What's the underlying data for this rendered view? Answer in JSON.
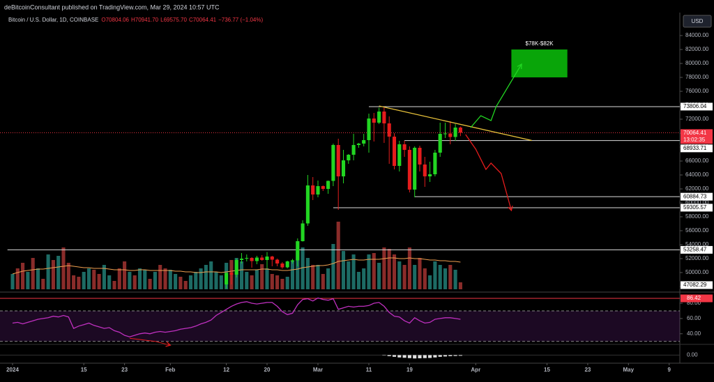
{
  "header": "deBitcoinConsultant published on TradingView.com, Mar 29, 2024 10:57 UTC",
  "chart_data": {
    "type": "candlestick",
    "title": "Bitcoin / U.S. Dollar, 1D, COINBASE",
    "ohlc_labels": [
      "O70804.06",
      "H70941.70",
      "L69575.70",
      "C70064.41"
    ],
    "change_label": "−736.77 (−1.04%)",
    "currency": "USD",
    "x": [
      "2024-02-12",
      "2024-02-13",
      "2024-02-14",
      "2024-02-15",
      "2024-02-16",
      "2024-02-17",
      "2024-02-18",
      "2024-02-19",
      "2024-02-20",
      "2024-02-21",
      "2024-02-22",
      "2024-02-23",
      "2024-02-24",
      "2024-02-25",
      "2024-02-26",
      "2024-02-27",
      "2024-02-28",
      "2024-02-29",
      "2024-03-01",
      "2024-03-02",
      "2024-03-03",
      "2024-03-04",
      "2024-03-05",
      "2024-03-06",
      "2024-03-07",
      "2024-03-08",
      "2024-03-09",
      "2024-03-10",
      "2024-03-11",
      "2024-03-12",
      "2024-03-13",
      "2024-03-14",
      "2024-03-15",
      "2024-03-16",
      "2024-03-17",
      "2024-03-18",
      "2024-03-19",
      "2024-03-20",
      "2024-03-21",
      "2024-03-22",
      "2024-03-23",
      "2024-03-24",
      "2024-03-25",
      "2024-03-26",
      "2024-03-27",
      "2024-03-28",
      "2024-03-29"
    ],
    "open": [
      48300,
      49950,
      49700,
      51800,
      52000,
      52100,
      51650,
      52150,
      51800,
      52300,
      51850,
      51300,
      50750,
      51600,
      51750,
      54500,
      57050,
      62500,
      61200,
      62400,
      62000,
      63150,
      68300,
      63800,
      66100,
      66900,
      68300,
      68500,
      69000,
      72100,
      71500,
      73100,
      71400,
      69500,
      65300,
      68400,
      67600,
      61900,
      67900,
      65500,
      63800,
      64100,
      67200,
      69900,
      69950,
      69450,
      70804.06
    ],
    "high": [
      50000,
      50350,
      52000,
      52800,
      52600,
      52200,
      52400,
      52500,
      52950,
      52400,
      52000,
      51500,
      51700,
      51950,
      54900,
      57500,
      64000,
      63700,
      63200,
      62500,
      63200,
      68500,
      69200,
      67600,
      67000,
      69900,
      68600,
      69900,
      72800,
      72900,
      73650,
      73800,
      72400,
      70000,
      68900,
      68900,
      68100,
      68100,
      68200,
      66600,
      65900,
      67600,
      71500,
      71500,
      71700,
      71300,
      70941.7
    ],
    "low": [
      47700,
      48300,
      49300,
      51300,
      51600,
      50700,
      51200,
      51700,
      50600,
      50900,
      50900,
      50550,
      50600,
      51300,
      50900,
      54450,
      56700,
      60400,
      60800,
      61700,
      61300,
      62400,
      59000,
      62800,
      65600,
      66100,
      67900,
      68100,
      67200,
      68800,
      71300,
      68600,
      65600,
      64800,
      64500,
      66600,
      61500,
      60800,
      64500,
      62300,
      63000,
      63800,
      66600,
      69300,
      68400,
      68900,
      69575.7
    ],
    "close": [
      49950,
      49700,
      51800,
      52000,
      52100,
      51650,
      52150,
      51800,
      52300,
      51850,
      51300,
      50750,
      51600,
      51750,
      54500,
      57050,
      62500,
      61200,
      62400,
      62000,
      63150,
      68300,
      63800,
      66100,
      66900,
      68300,
      68500,
      69000,
      72100,
      71500,
      73100,
      71400,
      69500,
      65300,
      68400,
      67600,
      61900,
      67900,
      65500,
      63800,
      64100,
      67200,
      69900,
      69950,
      69450,
      70800,
      70064.41
    ],
    "up_color": "#22d622",
    "down_color": "#e51c1c",
    "xlim": [
      "2023-12-31",
      "2024-05-11"
    ],
    "xticks": [
      {
        "value": "2024-01-01",
        "label": "2024"
      },
      {
        "value": "2024-01-15",
        "label": "15"
      },
      {
        "value": "2024-01-23",
        "label": "23"
      },
      {
        "value": "2024-02-01",
        "label": "Feb"
      },
      {
        "value": "2024-02-12",
        "label": "12"
      },
      {
        "value": "2024-02-20",
        "label": "20"
      },
      {
        "value": "2024-03-01",
        "label": "Mar"
      },
      {
        "value": "2024-03-11",
        "label": "11"
      },
      {
        "value": "2024-03-19",
        "label": "19"
      },
      {
        "value": "2024-04-01",
        "label": "Apr"
      },
      {
        "value": "2024-04-15",
        "label": "15"
      },
      {
        "value": "2024-04-23",
        "label": "23"
      },
      {
        "value": "2024-05-01",
        "label": "May"
      },
      {
        "value": "2024-05-09",
        "label": "9"
      }
    ],
    "ylim": [
      47600,
      86900
    ],
    "yticks": [
      {
        "value": 48000,
        "label": "48000.00"
      },
      {
        "value": 50000,
        "label": "50000.00"
      },
      {
        "value": 52000,
        "label": "52000.00"
      },
      {
        "value": 54000,
        "label": "54000.00"
      },
      {
        "value": 56000,
        "label": "56000.00"
      },
      {
        "value": 58000,
        "label": "58000.00"
      },
      {
        "value": 60000,
        "label": "60000.00"
      },
      {
        "value": 62000,
        "label": "62000.00"
      },
      {
        "value": 64000,
        "label": "64000.00"
      },
      {
        "value": 66000,
        "label": "66000.00"
      },
      {
        "value": 68000,
        "label": "68000.00"
      },
      {
        "value": 70000,
        "label": "70000.00"
      },
      {
        "value": 72000,
        "label": "72000.00"
      },
      {
        "value": 74000,
        "label": "74000.00"
      },
      {
        "value": 76000,
        "label": "76000.00"
      },
      {
        "value": 78000,
        "label": "78000.00"
      },
      {
        "value": 80000,
        "label": "80000.00"
      },
      {
        "value": 82000,
        "label": "82000.00"
      },
      {
        "value": 84000,
        "label": "84000.00"
      }
    ],
    "last_price": {
      "value": 70064.41,
      "countdown": "13:02:35",
      "color": "#f23645"
    },
    "levels": [
      {
        "value": 73806.04,
        "start": "2024-03-11"
      },
      {
        "value": 68933.71,
        "start": "2024-03-18"
      },
      {
        "value": 60884.73,
        "start": "2024-03-20"
      },
      {
        "value": 59305.57,
        "start": "2024-03-04"
      },
      {
        "value": 53258.47,
        "start": "2023-12-31"
      },
      {
        "value": 47082.29,
        "start": "2023-12-31"
      }
    ],
    "trendline": {
      "color": "#e8c23a",
      "points": [
        {
          "x": "2024-03-13",
          "y": 73900
        },
        {
          "x": "2024-04-12",
          "y": 68950
        }
      ]
    },
    "arrows": [
      {
        "color": "#22d622",
        "points": [
          {
            "x": "2024-03-31",
            "y": 70800
          },
          {
            "x": "2024-04-02",
            "y": 72500
          },
          {
            "x": "2024-04-04",
            "y": 71800
          },
          {
            "x": "2024-04-05",
            "y": 73800
          },
          {
            "x": "2024-04-10",
            "y": 79900
          }
        ]
      },
      {
        "color": "#e51c1c",
        "points": [
          {
            "x": "2024-03-30",
            "y": 69800
          },
          {
            "x": "2024-04-01",
            "y": 67700
          },
          {
            "x": "2024-04-03",
            "y": 64800
          },
          {
            "x": "2024-04-04",
            "y": 65700
          },
          {
            "x": "2024-04-06",
            "y": 64200
          },
          {
            "x": "2024-04-08",
            "y": 58900
          }
        ]
      }
    ],
    "target_zone": {
      "label": "$78K-$82K",
      "color": "#09a509",
      "x": [
        "2024-04-08",
        "2024-04-19"
      ],
      "y": [
        78000,
        82000
      ]
    },
    "volume": {
      "x": [
        "2024-01-01",
        "2024-01-02",
        "2024-01-03",
        "2024-01-04",
        "2024-01-05",
        "2024-01-06",
        "2024-01-07",
        "2024-01-08",
        "2024-01-09",
        "2024-01-10",
        "2024-01-11",
        "2024-01-12",
        "2024-01-13",
        "2024-01-14",
        "2024-01-15",
        "2024-01-16",
        "2024-01-17",
        "2024-01-18",
        "2024-01-19",
        "2024-01-20",
        "2024-01-21",
        "2024-01-22",
        "2024-01-23",
        "2024-01-24",
        "2024-01-25",
        "2024-01-26",
        "2024-01-27",
        "2024-01-28",
        "2024-01-29",
        "2024-01-30",
        "2024-01-31",
        "2024-02-01",
        "2024-02-02",
        "2024-02-03",
        "2024-02-04",
        "2024-02-05",
        "2024-02-06",
        "2024-02-07",
        "2024-02-08",
        "2024-02-09",
        "2024-02-10",
        "2024-02-11",
        "2024-02-12",
        "2024-02-13",
        "2024-02-14",
        "2024-02-15",
        "2024-02-16",
        "2024-02-17",
        "2024-02-18",
        "2024-02-19",
        "2024-02-20",
        "2024-02-21",
        "2024-02-22",
        "2024-02-23",
        "2024-02-24",
        "2024-02-25",
        "2024-02-26",
        "2024-02-27",
        "2024-02-28",
        "2024-02-29",
        "2024-03-01",
        "2024-03-02",
        "2024-03-03",
        "2024-03-04",
        "2024-03-05",
        "2024-03-06",
        "2024-03-07",
        "2024-03-08",
        "2024-03-09",
        "2024-03-10",
        "2024-03-11",
        "2024-03-12",
        "2024-03-13",
        "2024-03-14",
        "2024-03-15",
        "2024-03-16",
        "2024-03-17",
        "2024-03-18",
        "2024-03-19",
        "2024-03-20",
        "2024-03-21",
        "2024-03-22",
        "2024-03-23",
        "2024-03-24",
        "2024-03-25",
        "2024-03-26",
        "2024-03-27",
        "2024-03-28",
        "2024-03-29"
      ],
      "values": [
        22,
        30,
        38,
        25,
        45,
        30,
        15,
        50,
        42,
        48,
        60,
        38,
        20,
        18,
        25,
        30,
        28,
        22,
        35,
        20,
        12,
        30,
        40,
        25,
        20,
        30,
        28,
        15,
        25,
        35,
        30,
        28,
        22,
        18,
        12,
        20,
        25,
        30,
        35,
        40,
        25,
        20,
        38,
        42,
        45,
        40,
        25,
        20,
        28,
        36,
        30,
        22,
        20,
        15,
        18,
        40,
        55,
        60,
        45,
        35,
        35,
        22,
        30,
        65,
        97,
        55,
        40,
        50,
        25,
        30,
        50,
        52,
        38,
        60,
        58,
        50,
        40,
        35,
        60,
        35,
        45,
        30,
        20,
        40,
        35,
        30,
        35,
        28,
        10
      ],
      "colors": [
        "#1d6b64",
        "#8a2c2a",
        "#8a2c2a",
        "#1d6b64",
        "#8a2c2a",
        "#1d6b64",
        "#8a2c2a",
        "#1d6b64",
        "#8a2c2a",
        "#1d6b64",
        "#8a2c2a",
        "#8a2c2a",
        "#8a2c2a",
        "#8a2c2a",
        "#1d6b64",
        "#1d6b64",
        "#8a2c2a",
        "#8a2c2a",
        "#1d6b64",
        "#1d6b64",
        "#8a2c2a",
        "#8a2c2a",
        "#8a2c2a",
        "#1d6b64",
        "#8a2c2a",
        "#1d6b64",
        "#1d6b64",
        "#8a2c2a",
        "#1d6b64",
        "#8a2c2a",
        "#8a2c2a",
        "#1d6b64",
        "#1d6b64",
        "#8a2c2a",
        "#8a2c2a",
        "#1d6b64",
        "#1d6b64",
        "#1d6b64",
        "#1d6b64",
        "#1d6b64",
        "#1d6b64",
        "#1d6b64",
        "#1d6b64",
        "#8a2c2a",
        "#1d6b64",
        "#1d6b64",
        "#1d6b64",
        "#8a2c2a",
        "#1d6b64",
        "#8a2c2a",
        "#1d6b64",
        "#8a2c2a",
        "#8a2c2a",
        "#8a2c2a",
        "#1d6b64",
        "#1d6b64",
        "#1d6b64",
        "#1d6b64",
        "#1d6b64",
        "#8a2c2a",
        "#1d6b64",
        "#8a2c2a",
        "#1d6b64",
        "#1d6b64",
        "#8a2c2a",
        "#1d6b64",
        "#1d6b64",
        "#1d6b64",
        "#1d6b64",
        "#1d6b64",
        "#1d6b64",
        "#8a2c2a",
        "#1d6b64",
        "#8a2c2a",
        "#8a2c2a",
        "#8a2c2a",
        "#1d6b64",
        "#8a2c2a",
        "#8a2c2a",
        "#1d6b64",
        "#8a2c2a",
        "#8a2c2a",
        "#1d6b64",
        "#1d6b64",
        "#1d6b64",
        "#1d6b64",
        "#8a2c2a",
        "#1d6b64",
        "#8a2c2a"
      ],
      "ma": [
        22,
        24,
        26,
        27,
        28,
        29,
        29,
        30,
        31,
        32,
        33,
        34,
        33,
        32,
        31,
        31,
        30,
        30,
        30,
        29,
        28,
        28,
        28,
        27,
        27,
        28,
        28,
        27,
        27,
        27,
        27,
        27,
        26,
        26,
        25,
        25,
        24,
        24,
        25,
        25,
        25,
        24,
        25,
        26,
        27,
        28,
        28,
        28,
        28,
        29,
        29,
        28,
        28,
        27,
        27,
        28,
        29,
        31,
        32,
        33,
        34,
        34,
        35,
        37,
        40,
        41,
        42,
        43,
        42,
        42,
        43,
        43,
        43,
        44,
        45,
        45,
        44,
        44,
        45,
        44,
        44,
        43,
        42,
        42,
        41,
        41,
        40,
        40,
        39
      ],
      "ma_color": "#f0a050"
    },
    "rsi": {
      "values": [
        54,
        55,
        53,
        55,
        57,
        59,
        60,
        61,
        63,
        62,
        64,
        62,
        47,
        50,
        52,
        54,
        51,
        49,
        47,
        48,
        44,
        42,
        38,
        36,
        38,
        40,
        41,
        40,
        42,
        43,
        42,
        43,
        44,
        46,
        47,
        48,
        50,
        53,
        55,
        58,
        64,
        68,
        72,
        76,
        79,
        81,
        82,
        80,
        79,
        80,
        81,
        81,
        76,
        69,
        65,
        67,
        78,
        85,
        86,
        83,
        87,
        85,
        84,
        86,
        72,
        74,
        76,
        75,
        76,
        76,
        77,
        80,
        81,
        76,
        68,
        63,
        62,
        57,
        54,
        61,
        57,
        54,
        55,
        59,
        60,
        61,
        61,
        60,
        59
      ],
      "color": "#c030c0",
      "ylim": [
        27,
        91
      ],
      "yticks": [
        {
          "value": 80,
          "label": "80.00"
        },
        {
          "value": 60,
          "label": "60.00"
        },
        {
          "value": 40,
          "label": "40.00"
        }
      ],
      "band": [
        30,
        70
      ],
      "marker": 86.42,
      "divergence": {
        "color": "#e51c1c",
        "points": [
          {
            "x": "2024-01-24",
            "y": 34
          },
          {
            "x": "2024-01-29",
            "y": 30
          },
          {
            "x": "2024-02-01",
            "y": 25
          }
        ]
      }
    },
    "macd": {
      "x": [
        "2024-03-14",
        "2024-03-15",
        "2024-03-16",
        "2024-03-17",
        "2024-03-18",
        "2024-03-19",
        "2024-03-20",
        "2024-03-21",
        "2024-03-22",
        "2024-03-23",
        "2024-03-24",
        "2024-03-25",
        "2024-03-26",
        "2024-03-27",
        "2024-03-28",
        "2024-03-29"
      ],
      "histogram": [
        -100,
        -300,
        -500,
        -700,
        -800,
        -900,
        -1000,
        -950,
        -900,
        -850,
        -700,
        -500,
        -400,
        -300,
        -250,
        -200
      ],
      "color": "#e0e0e0",
      "ylim": [
        -2000,
        2600
      ],
      "yticks": [
        {
          "value": 0,
          "label": "0.00"
        }
      ]
    }
  }
}
